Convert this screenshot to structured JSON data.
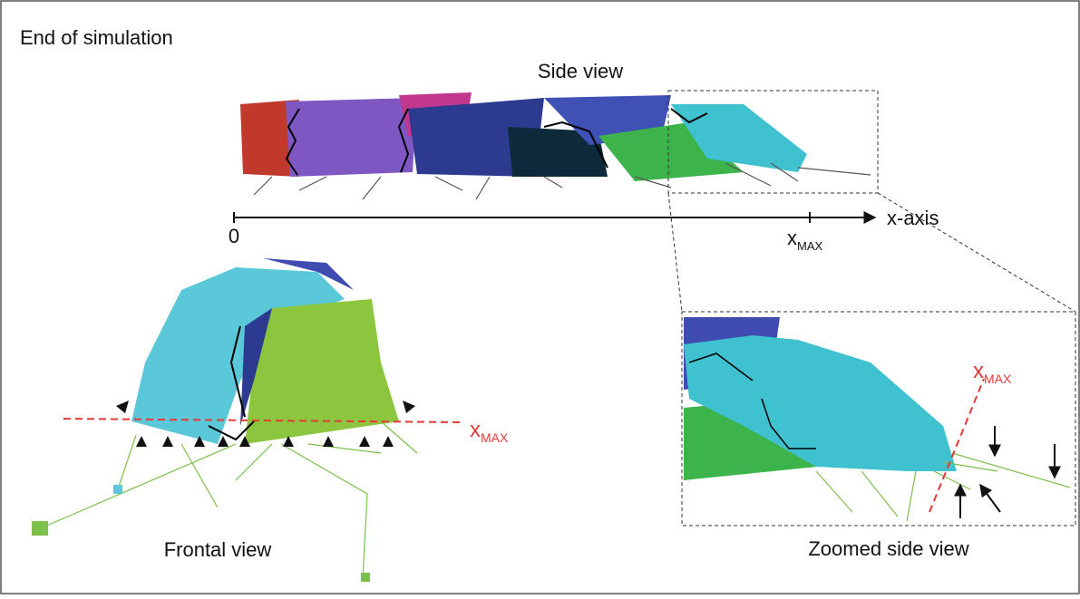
{
  "panel": {
    "title": "End of simulation"
  },
  "side_view": {
    "label": "Side view",
    "axis": {
      "origin": "0",
      "max_main": "x",
      "max_sub": "MAX",
      "name": "x-axis"
    }
  },
  "frontal_view": {
    "label": "Frontal view",
    "marker_main": "x",
    "marker_sub": "MAX"
  },
  "zoomed_view": {
    "label": "Zoomed side view",
    "marker_main": "x",
    "marker_sub": "MAX"
  }
}
